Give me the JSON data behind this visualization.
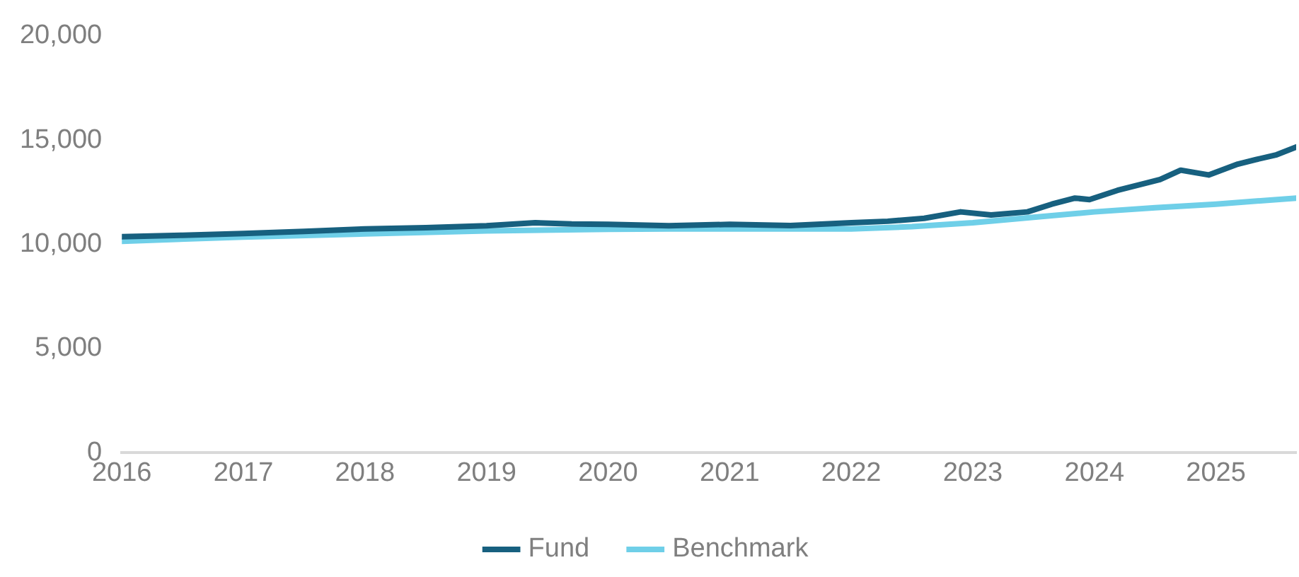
{
  "chart_data": {
    "type": "line",
    "xlim": [
      2016,
      2025.66
    ],
    "xticks": [
      2016,
      2017,
      2018,
      2019,
      2020,
      2021,
      2022,
      2023,
      2024,
      2025
    ],
    "ylim": [
      0,
      20000
    ],
    "yticks": [
      {
        "value": 0,
        "label": "0"
      },
      {
        "value": 5000,
        "label": "5,000"
      },
      {
        "value": 10000,
        "label": "10,000"
      },
      {
        "value": 15000,
        "label": "15,000"
      },
      {
        "value": 20000,
        "label": "20,000"
      }
    ],
    "grid": false,
    "legend": "bottom",
    "marker": "none",
    "line_style": "solid",
    "series": [
      {
        "name": "Fund",
        "color": "#17607f",
        "x": [
          2016,
          2016.5,
          2017,
          2017.5,
          2018,
          2018.5,
          2019,
          2019.4,
          2019.7,
          2020,
          2020.5,
          2021,
          2021.5,
          2022,
          2022.3,
          2022.6,
          2022.9,
          2023.15,
          2023.45,
          2023.65,
          2023.84,
          2023.96,
          2024.19,
          2024.54,
          2024.71,
          2024.94,
          2025.18,
          2025.33,
          2025.5,
          2025.66
        ],
        "values": [
          10370,
          10440,
          10520,
          10620,
          10740,
          10800,
          10890,
          11040,
          10980,
          10960,
          10890,
          10960,
          10900,
          11040,
          11110,
          11250,
          11560,
          11410,
          11560,
          11930,
          12220,
          12150,
          12590,
          13110,
          13560,
          13330,
          13850,
          14070,
          14300,
          14670
        ]
      },
      {
        "name": "Benchmark",
        "color": "#6fcfe8",
        "x": [
          2016,
          2017,
          2018,
          2019,
          2020,
          2020.5,
          2021,
          2022,
          2022.5,
          2023,
          2023.5,
          2024,
          2024.5,
          2025,
          2025.66
        ],
        "values": [
          10150,
          10350,
          10500,
          10650,
          10720,
          10740,
          10740,
          10740,
          10850,
          11040,
          11300,
          11560,
          11760,
          11930,
          12220
        ]
      }
    ]
  }
}
